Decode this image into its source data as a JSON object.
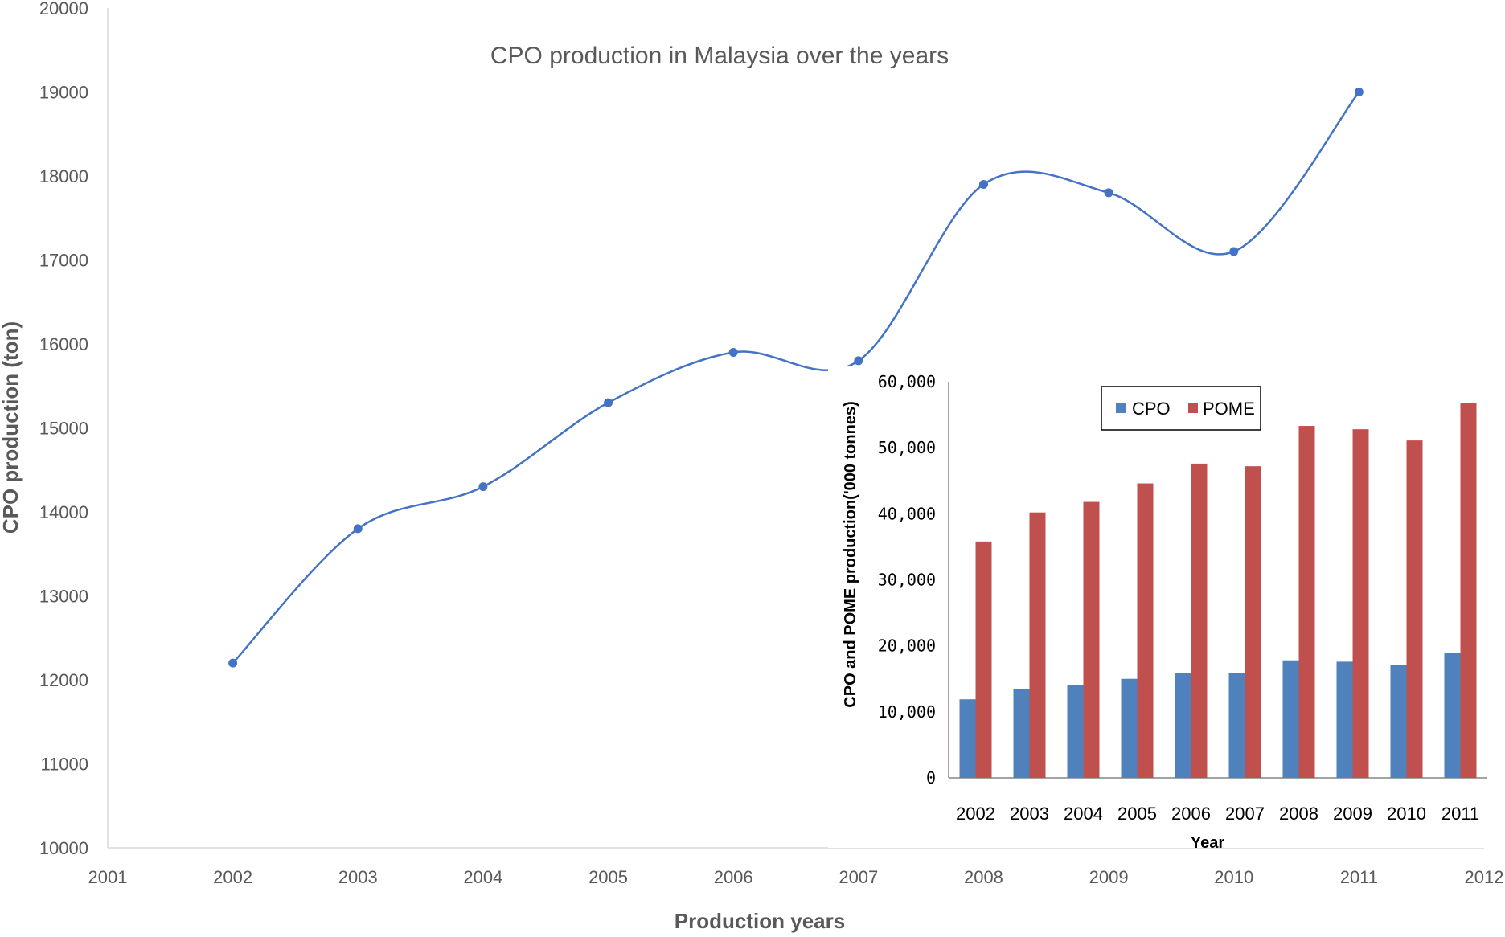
{
  "chart_data": [
    {
      "type": "line",
      "title": "CPO production in Malaysia over the years",
      "xlabel": "Production years",
      "ylabel": "CPO production (ton)",
      "xlim": [
        2001,
        2012
      ],
      "ylim": [
        10000,
        20000
      ],
      "x_ticks": [
        "2001",
        "2002",
        "2003",
        "2004",
        "2005",
        "2006",
        "2007",
        "2008",
        "2009",
        "2010",
        "2011",
        "2012"
      ],
      "y_ticks": [
        "10000",
        "11000",
        "12000",
        "13000",
        "14000",
        "15000",
        "16000",
        "17000",
        "18000",
        "19000",
        "20000"
      ],
      "x": [
        2002,
        2003,
        2004,
        2005,
        2006,
        2007,
        2008,
        2009,
        2010,
        2011
      ],
      "y": [
        12200,
        13800,
        14300,
        15300,
        15900,
        15800,
        17900,
        17800,
        17100,
        19000
      ],
      "smooth": true,
      "color": "#4472c4"
    },
    {
      "type": "bar",
      "xlabel": "Year",
      "ylabel": "CPO  and POME production('000 tonnes)",
      "categories": [
        "2002",
        "2003",
        "2004",
        "2005",
        "2006",
        "2007",
        "2008",
        "2009",
        "2010",
        "2011"
      ],
      "ylim": [
        0,
        60000
      ],
      "y_ticks": [
        "0",
        "10,000",
        "20,000",
        "30,000",
        "40,000",
        "50,000",
        "60,000"
      ],
      "legend_position": "top-right",
      "series": [
        {
          "name": "CPO",
          "color": "#4f81bd",
          "values": [
            11900,
            13400,
            14000,
            15000,
            15900,
            15900,
            17800,
            17600,
            17100,
            18900
          ]
        },
        {
          "name": "POME",
          "color": "#c0504d",
          "values": [
            35800,
            40200,
            41800,
            44600,
            47600,
            47200,
            53300,
            52800,
            51100,
            56800
          ]
        }
      ]
    }
  ]
}
